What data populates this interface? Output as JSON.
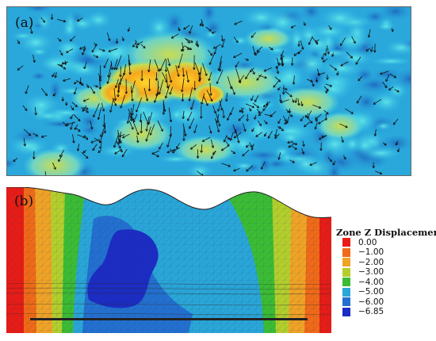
{
  "panel_a": {
    "label": "(a)",
    "colors": {
      "background": "#2bb4e2",
      "deep": "#1e72c4",
      "mid": "#3ecfe0",
      "warm": "#bedc50",
      "hot": "#f2a21d",
      "peak": "#ffd52a"
    }
  },
  "panel_b": {
    "label": "(b)"
  },
  "legend": {
    "title": "Zone Z Displacement",
    "entries": [
      {
        "label": "0.00",
        "color": "#e81c16"
      },
      {
        "label": "−1.00",
        "color": "#f06a18"
      },
      {
        "label": "−2.00",
        "color": "#f0a326"
      },
      {
        "label": "−3.00",
        "color": "#b4cf2c"
      },
      {
        "label": "−4.00",
        "color": "#3cbc34"
      },
      {
        "label": "−5.00",
        "color": "#2aa6d8"
      },
      {
        "label": "−6.00",
        "color": "#2370d0"
      },
      {
        "label": "−6.85",
        "color": "#1c2cc4"
      }
    ]
  }
}
